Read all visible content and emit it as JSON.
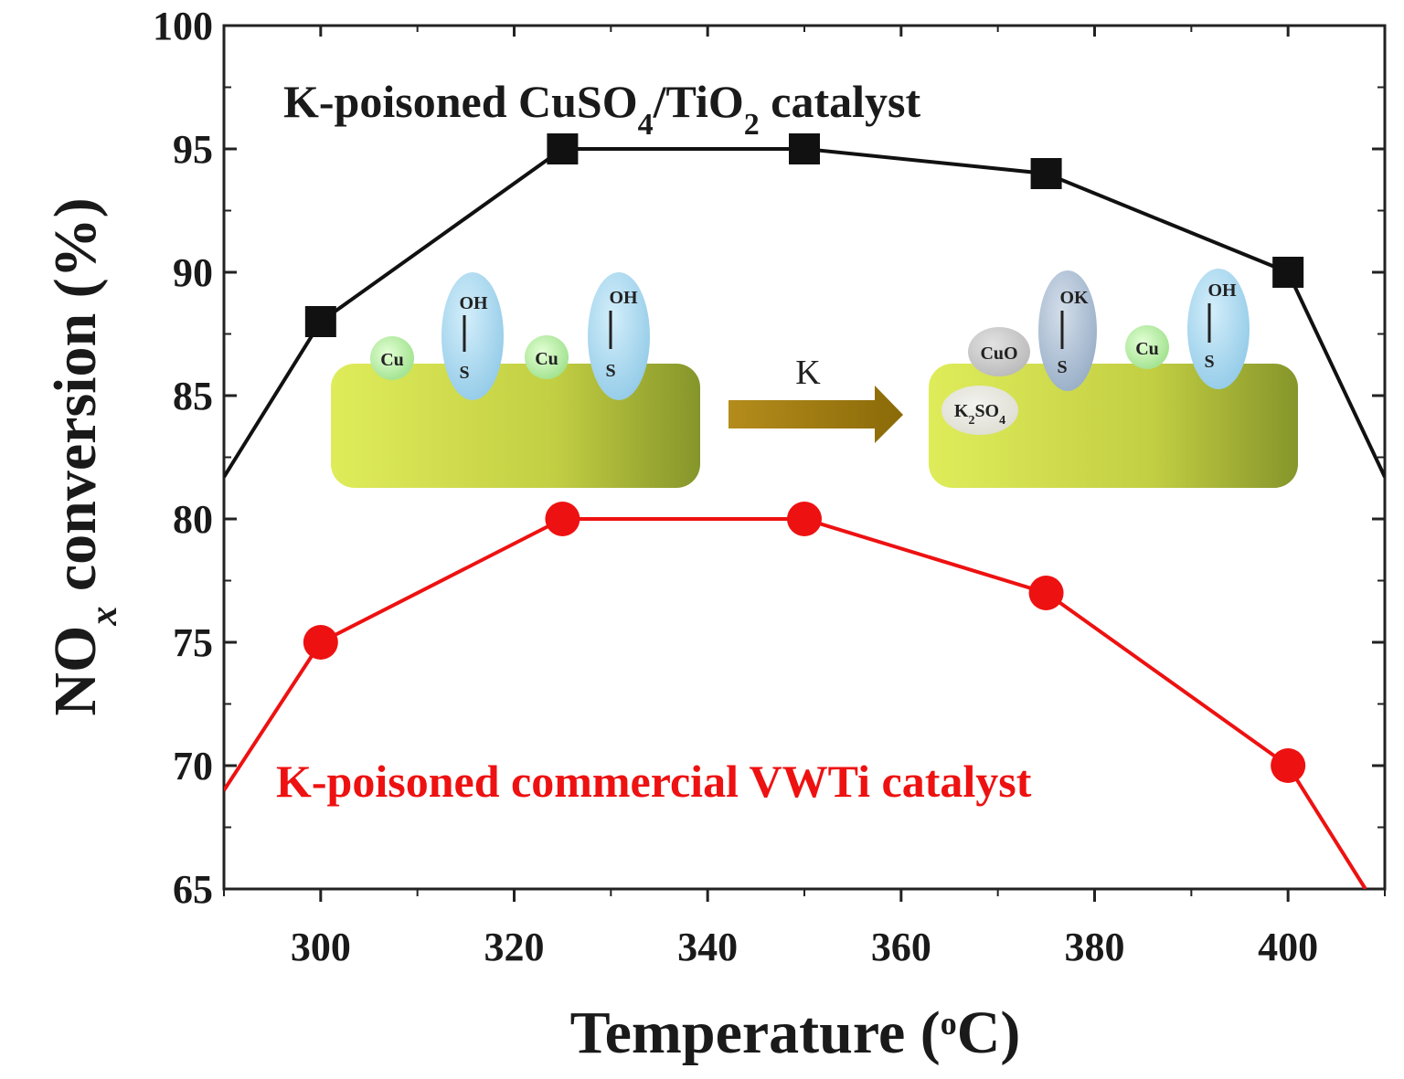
{
  "chart_data": {
    "type": "line",
    "xlabel": "Temperature (",
    "xlabel_sup": "o",
    "xlabel_end": "C)",
    "ylabel_main": "NO",
    "ylabel_sub": "x",
    "ylabel_end": " conversion (%)",
    "xlim": [
      290,
      410
    ],
    "ylim": [
      65,
      100
    ],
    "x_ticks": [
      300,
      320,
      340,
      360,
      380,
      400
    ],
    "y_ticks": [
      65,
      70,
      75,
      80,
      85,
      90,
      95,
      100
    ],
    "x": [
      300,
      325,
      350,
      375,
      400
    ],
    "series": [
      {
        "label_text": "K-poisoned CuSO",
        "label_sub1": "4",
        "label_mid": "/TiO",
        "label_sub2": "2",
        "label_end": " catalyst",
        "values": [
          88,
          95,
          95,
          94,
          90
        ],
        "line_start": [
          290,
          81.7
        ],
        "line_end": [
          410,
          81.7
        ],
        "color": "#111111",
        "marker": "square"
      },
      {
        "label_text": "K-poisoned commercial VWTi catalyst",
        "values": [
          75,
          80,
          80,
          77,
          70
        ],
        "line_start": [
          290,
          69
        ],
        "line_end": [
          408,
          65
        ],
        "color": "#ee1111",
        "marker": "circle"
      }
    ],
    "grid": false,
    "legend": "none"
  },
  "scheme": {
    "arrow_label": "K",
    "left": {
      "cu1": "Cu",
      "oh1": "OH",
      "s1": "S",
      "cu2": "Cu",
      "oh2": "OH",
      "s2": "S"
    },
    "right": {
      "cuo": "CuO",
      "ok": "OK",
      "s1": "S",
      "cu": "Cu",
      "oh": "OH",
      "s2": "S",
      "k2so4_main": "K",
      "k2so4_sub1": "2",
      "k2so4_mid": "SO",
      "k2so4_sub2": "4"
    },
    "colors": {
      "support": "#c5d24a",
      "cu": "#b8f0a8",
      "oh_bubble": "#a8d8ef",
      "arrow": "#a07d10"
    }
  }
}
